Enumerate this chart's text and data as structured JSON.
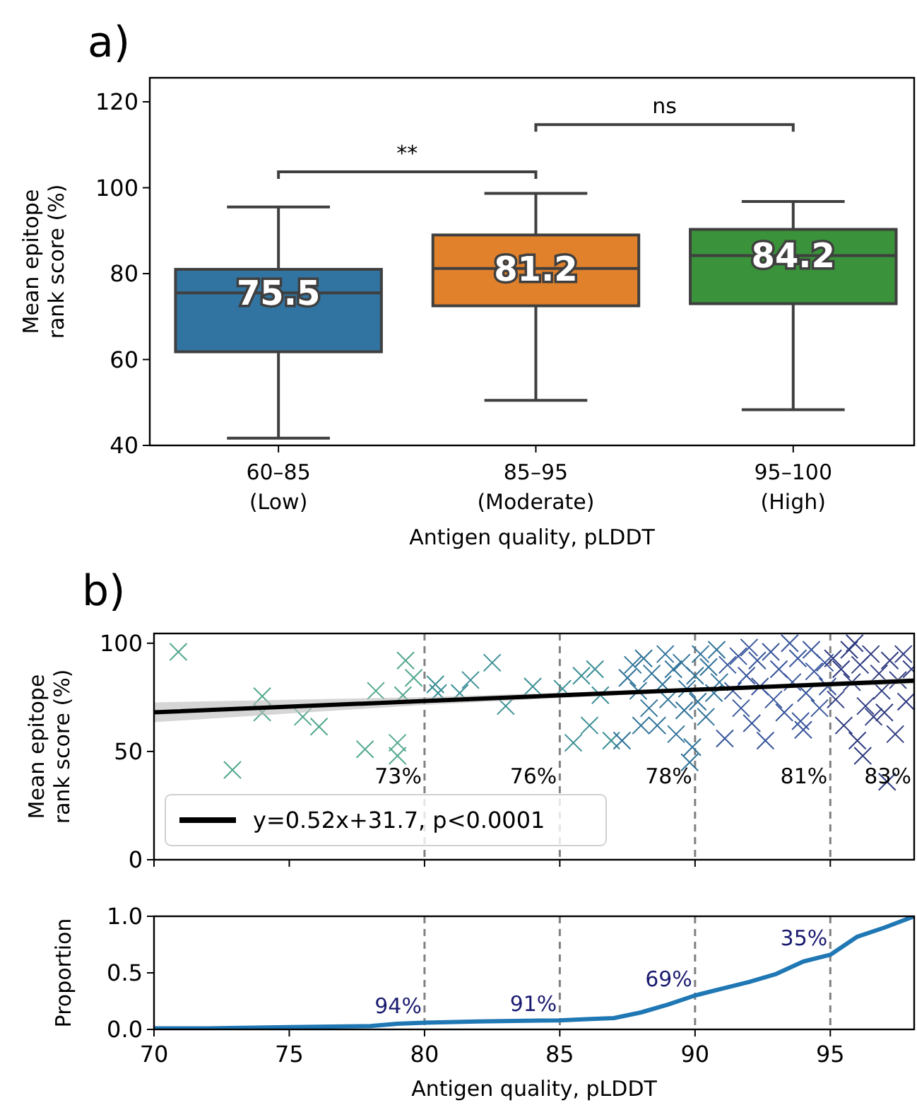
{
  "chart_data": [
    {
      "type": "box",
      "title": "a)",
      "xlabel": "Antigen quality, pLDDT",
      "ylabel": "Mean epitope\nrank score (%)",
      "categories": [
        "60–85\n(Low)",
        "85–95\n(Moderate)",
        "95–100\n(High)"
      ],
      "colors": [
        "#3274a1",
        "#e1812c",
        "#3a923a"
      ],
      "boxes": [
        {
          "low": 41.7,
          "q1": 61.8,
          "median": 75.5,
          "q3": 81,
          "high": 95.5
        },
        {
          "low": 50.5,
          "q1": 72.5,
          "median": 81.2,
          "q3": 89,
          "high": 98.7
        },
        {
          "low": 48.3,
          "q1": 73,
          "median": 84.2,
          "q3": 90.3,
          "high": 96.8
        }
      ],
      "value_labels": [
        "75.5",
        "81.2",
        "84.2"
      ],
      "ylim": [
        40,
        125.6
      ],
      "yticks": [
        40,
        60,
        80,
        100,
        120
      ],
      "annotations": [
        "**",
        "ns"
      ]
    },
    {
      "type": "scatter",
      "title": "b)",
      "ylabel": "Mean epitope\nrank score (%)",
      "xlim": [
        70,
        98.1
      ],
      "xticks": [
        70,
        75,
        80,
        85,
        90,
        95
      ],
      "ylim": [
        0,
        104.5
      ],
      "yticks": [
        0,
        50,
        100
      ],
      "tick_labels": "y",
      "legend": "bottom left",
      "series": [
        {
          "type": "scatter",
          "marker": "cross",
          "color": "#52a88f",
          "x": [
            70.9,
            72.9,
            74,
            74,
            75.5,
            76.1,
            77.8,
            78.2,
            79,
            79,
            79.2,
            79.3,
            79.6
          ],
          "values": [
            96,
            41.5,
            75.5,
            68,
            66,
            61.5,
            51,
            78,
            54,
            48,
            76,
            92,
            84
          ]
        },
        {
          "type": "scatter",
          "marker": "cross",
          "color": "#3a8f95",
          "x": [
            80.4,
            80.5,
            81.3,
            81.7,
            82.5,
            83,
            84,
            85.1,
            85.5,
            86.1,
            86.3,
            86.9,
            85.8,
            86.5
          ],
          "values": [
            81,
            77,
            77,
            83,
            91,
            71,
            80,
            79,
            54,
            62,
            88,
            55,
            85,
            76
          ]
        },
        {
          "type": "scatter",
          "marker": "cross",
          "color": "#2f7298",
          "x": [
            87.3,
            87.5,
            87.7,
            87.9,
            88.1,
            88.3,
            88.4,
            88.6,
            88.8,
            88.9,
            89,
            89.2,
            89.3,
            89.5,
            89.6,
            89.7,
            89.9,
            90,
            90.1,
            90.2,
            90.4,
            90.5,
            90.7,
            90.8,
            90.9,
            89.8,
            88
          ],
          "values": [
            55,
            84,
            90,
            78,
            93,
            70,
            86,
            62,
            81,
            95,
            74,
            88,
            58,
            91,
            69,
            79,
            52,
            85,
            73,
            95,
            66,
            89,
            77,
            97,
            82,
            45,
            62
          ]
        },
        {
          "type": "scatter",
          "marker": "cross",
          "color": "#37559b",
          "x": [
            91.1,
            91.2,
            91.4,
            91.6,
            91.7,
            91.9,
            92.1,
            92.3,
            92.4,
            92.6,
            92.8,
            92.9,
            93.1,
            93.3,
            93.5,
            93.6,
            93.8,
            94,
            94.1,
            94.3,
            94.4,
            94.6,
            94.8,
            94.9,
            93.9,
            92
          ],
          "values": [
            56,
            90,
            78,
            94,
            70,
            85,
            63,
            92,
            80,
            55,
            96,
            74,
            88,
            68,
            100,
            82,
            93,
            60,
            77,
            97,
            87,
            70,
            91,
            80,
            64,
            98
          ]
        },
        {
          "type": "scatter",
          "marker": "cross",
          "color": "#2f3b80",
          "x": [
            95.1,
            95.2,
            95.4,
            95.5,
            95.7,
            95.8,
            96,
            96.1,
            96.3,
            96.5,
            96.6,
            96.8,
            96.9,
            97.1,
            97.2,
            97.4,
            97.5,
            97.7,
            97.8,
            98,
            96.2,
            95.9,
            97
          ],
          "values": [
            93,
            74,
            88,
            62,
            97,
            82,
            55,
            90,
            71,
            95,
            66,
            86,
            78,
            36,
            92,
            58,
            83,
            95,
            73,
            88,
            48,
            100,
            68
          ]
        },
        {
          "type": "line",
          "name": "y=0.52x+31.7, p<0.0001",
          "color": "#000000",
          "x": [
            70,
            80,
            90,
            98.1
          ],
          "values": [
            68.1,
            73.3,
            78.5,
            82.7
          ],
          "lower": [
            63.5,
            71.5,
            77.8,
            81.2
          ],
          "upper": [
            72.7,
            75.1,
            79.2,
            84.1
          ]
        }
      ],
      "ref_lines": [
        {
          "axis": "x",
          "value": 80,
          "color": "#808080",
          "line_style": "dashed"
        },
        {
          "axis": "x",
          "value": 85,
          "color": "#808080",
          "line_style": "dashed"
        },
        {
          "axis": "x",
          "value": 90,
          "color": "#808080",
          "line_style": "dashed"
        },
        {
          "axis": "x",
          "value": 95,
          "color": "#808080",
          "line_style": "dashed"
        }
      ],
      "annotations": [
        "73%",
        "76%",
        "78%",
        "81%",
        "83%"
      ]
    },
    {
      "type": "line",
      "xlabel": "Antigen quality, pLDDT",
      "ylabel": "Proportion",
      "xlim": [
        70,
        98.1
      ],
      "xticks": [
        70,
        75,
        80,
        85,
        90,
        95
      ],
      "ylim": [
        0,
        1
      ],
      "yticks": [
        {
          "value": 0,
          "label": "0.0"
        },
        {
          "value": 0.5,
          "label": "0.5"
        },
        {
          "value": 1,
          "label": "1.0"
        }
      ],
      "series": [
        {
          "type": "line",
          "color": "#1f77b4",
          "x": [
            70,
            72,
            75,
            78,
            79,
            80,
            82,
            85,
            86,
            87,
            88,
            89,
            90,
            91,
            92,
            93,
            94,
            95,
            96,
            97,
            98.1
          ],
          "values": [
            0.01,
            0.01,
            0.02,
            0.03,
            0.05,
            0.06,
            0.07,
            0.08,
            0.09,
            0.1,
            0.15,
            0.22,
            0.3,
            0.36,
            0.42,
            0.49,
            0.6,
            0.66,
            0.82,
            0.9,
            1
          ]
        }
      ],
      "ref_lines": [
        {
          "axis": "x",
          "value": 80,
          "color": "#808080",
          "line_style": "dashed"
        },
        {
          "axis": "x",
          "value": 85,
          "color": "#808080",
          "line_style": "dashed"
        },
        {
          "axis": "x",
          "value": 90,
          "color": "#808080",
          "line_style": "dashed"
        },
        {
          "axis": "x",
          "value": 95,
          "color": "#808080",
          "line_style": "dashed"
        }
      ],
      "annotations": [
        "94%",
        "91%",
        "69%",
        "35%"
      ]
    }
  ]
}
